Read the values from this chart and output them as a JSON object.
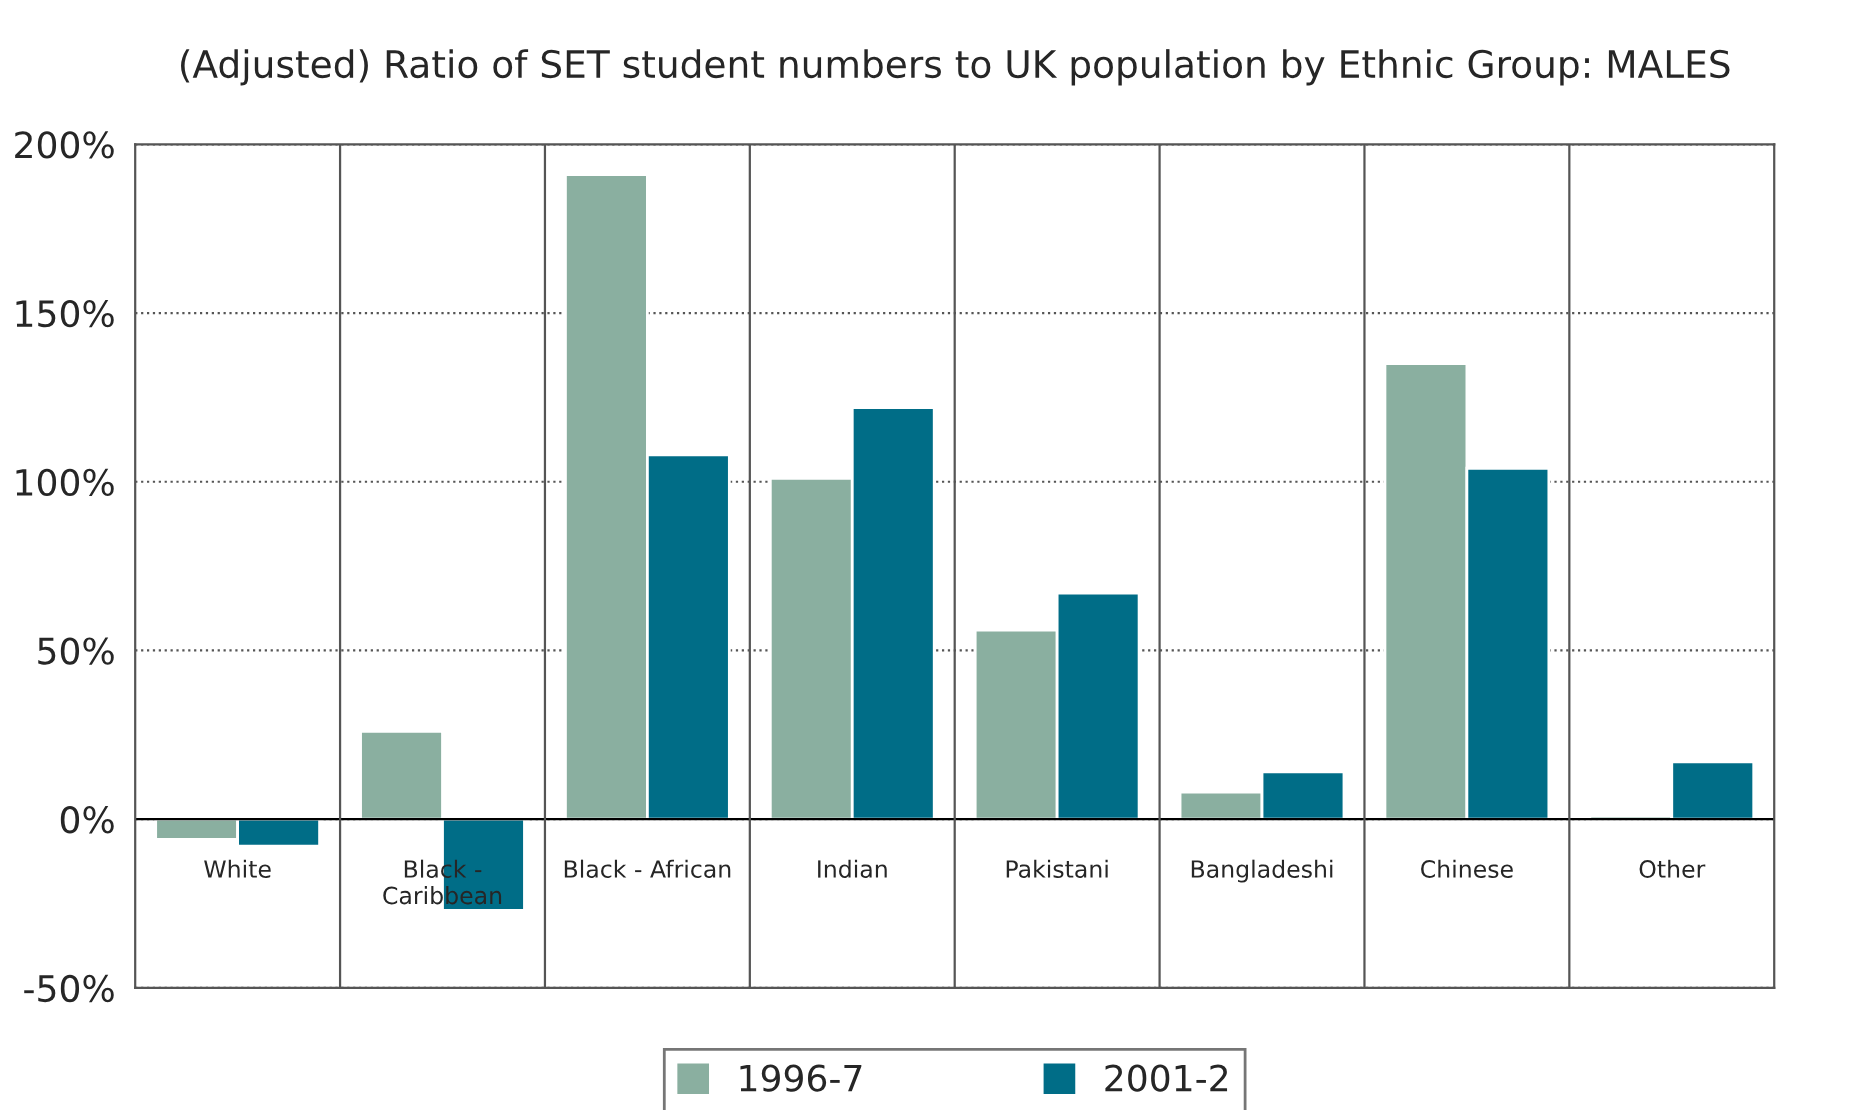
{
  "chart_data": {
    "type": "bar",
    "title": "(Adjusted) Ratio of SET student numbers to UK population by Ethnic Group: MALES",
    "categories": [
      "White",
      "Black -\nCaribbean",
      "Black - African",
      "Indian",
      "Pakistani",
      "Bangladeshi",
      "Chinese",
      "Other"
    ],
    "series": [
      {
        "name": "1996-7",
        "color": "#8aafa0",
        "values": [
          -6,
          26,
          191,
          101,
          56,
          8,
          135,
          1
        ]
      },
      {
        "name": "2001-2",
        "color": "#006d87",
        "values": [
          -8,
          -27,
          108,
          122,
          67,
          14,
          104,
          17
        ]
      }
    ],
    "ylim": [
      -50,
      200
    ],
    "yticks": [
      {
        "value": -50,
        "label": "-50%"
      },
      {
        "value": 0,
        "label": "0%"
      },
      {
        "value": 50,
        "label": "50%"
      },
      {
        "value": 100,
        "label": "100%"
      },
      {
        "value": 150,
        "label": "150%"
      },
      {
        "value": 200,
        "label": "200%"
      }
    ],
    "grid": true,
    "legend": "bottom"
  }
}
